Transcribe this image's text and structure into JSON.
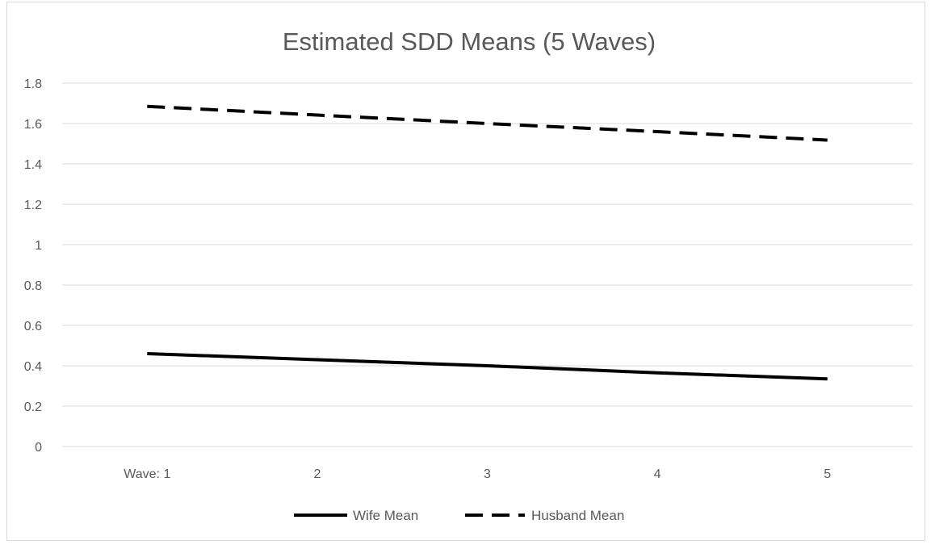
{
  "chart_data": {
    "type": "line",
    "title": "Estimated SDD Means (5 Waves)",
    "xlabel": "",
    "ylabel": "",
    "categories": [
      "Wave: 1",
      "2",
      "3",
      "4",
      "5"
    ],
    "ylim": [
      0,
      1.8
    ],
    "yticks": [
      "0",
      "0.2",
      "0.4",
      "0.6",
      "0.8",
      "1",
      "1.2",
      "1.4",
      "1.6",
      "1.8"
    ],
    "grid": "horizontal",
    "legend": "bottom",
    "series": [
      {
        "name": "Wife Mean",
        "values": [
          0.46,
          0.43,
          0.4,
          0.365,
          0.335
        ],
        "style": "solid",
        "color": "#000000"
      },
      {
        "name": "Husband Mean",
        "values": [
          1.685,
          1.642,
          1.6,
          1.56,
          1.518
        ],
        "style": "dashed",
        "color": "#000000"
      }
    ]
  }
}
